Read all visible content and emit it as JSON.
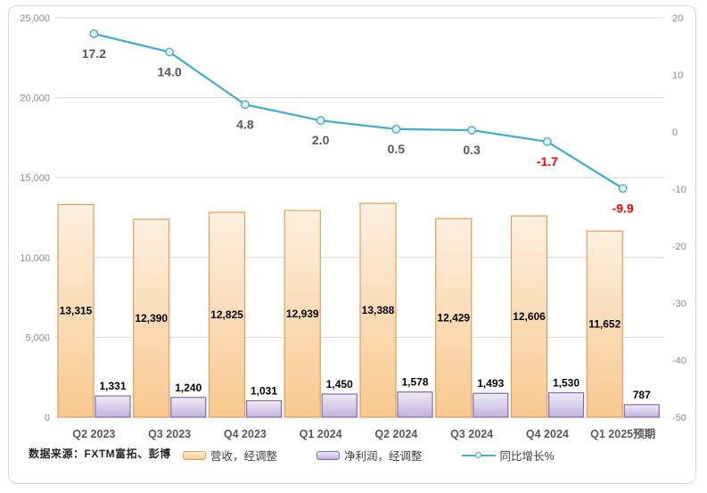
{
  "chart_data": {
    "type": "combo-bar-line",
    "categories": [
      "Q2 2023",
      "Q3 2023",
      "Q4 2023",
      "Q1 2024",
      "Q2 2024",
      "Q3 2024",
      "Q4 2024",
      "Q1 2025预期"
    ],
    "series": [
      {
        "name": "营收，经调整",
        "type": "bar",
        "axis": "left",
        "values": [
          13315,
          12390,
          12825,
          12939,
          13388,
          12429,
          12606,
          11652
        ],
        "labels": [
          "13,315",
          "12,390",
          "12,825",
          "12,939",
          "13,388",
          "12,429",
          "12,606",
          "11,652"
        ]
      },
      {
        "name": "净利润，经调整",
        "type": "bar",
        "axis": "left",
        "values": [
          1331,
          1240,
          1031,
          1450,
          1578,
          1493,
          1530,
          787
        ],
        "labels": [
          "1,331",
          "1,240",
          "1,031",
          "1,450",
          "1,578",
          "1,493",
          "1,530",
          "787"
        ]
      },
      {
        "name": "同比增长%",
        "type": "line",
        "axis": "right",
        "values": [
          17.2,
          14,
          4.8,
          2,
          0.5,
          0.3,
          -1.7,
          -9.9
        ],
        "labels": [
          "17.2",
          "14.0",
          "4.8",
          "2.0",
          "0.5",
          "0.3",
          "-1.7",
          "-9.9"
        ]
      }
    ],
    "left_axis": {
      "min": 0,
      "max": 25000,
      "tick_values": [
        25000,
        20000,
        15000,
        10000,
        5000,
        0
      ],
      "tick_labels": [
        "25,000",
        "20,000",
        "15,000",
        "10,000",
        "5,000",
        "0"
      ]
    },
    "right_axis": {
      "min": -50,
      "max": 20,
      "tick_values": [
        20,
        10,
        0,
        -10,
        -20,
        -30,
        -40,
        -50
      ],
      "tick_labels": [
        "20",
        "10",
        "0",
        "-10",
        "-20",
        "-30",
        "-40",
        "-50"
      ]
    },
    "grid": "horizontal",
    "legend_position": "bottom"
  },
  "legend": {
    "revenue": {
      "label": "营收，经调整"
    },
    "profit": {
      "label": "净利润，经调整"
    },
    "growth": {
      "label": "同比增长%"
    }
  },
  "footer": {
    "source": "数据来源：FXTM富拓、彭博"
  },
  "colors": {
    "revenue_fill_top": "#FDF0DF",
    "revenue_fill_bottom": "#F8C98F",
    "revenue_border": "#E19C60",
    "profit_fill_top": "#EFECF7",
    "profit_fill_bottom": "#C2B2DC",
    "profit_border": "#7F6DA6",
    "growth_line": "#4BACC6",
    "marker_fill": "#E3F3F9",
    "grid_line": "#D9D9D9",
    "axis_text": "#8C8C8C",
    "category_text": "#595959",
    "line_label_text": "#595959",
    "line_label_negative": "#FF0000",
    "bar_label_text": "#000000",
    "legend_text": "#404040",
    "footer_text": "#262626",
    "frame_border": "#D7D7D7"
  }
}
